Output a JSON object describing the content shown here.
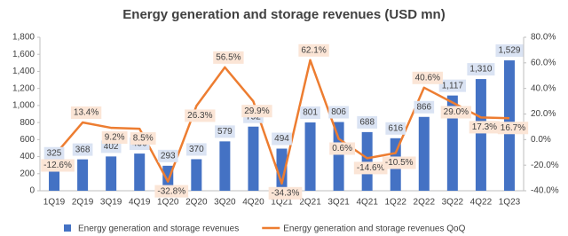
{
  "chart_data": {
    "type": "bar_line",
    "title": "Energy generation and storage revenues (USD mn)",
    "categories": [
      "1Q19",
      "2Q19",
      "3Q19",
      "4Q19",
      "1Q20",
      "2Q20",
      "3Q20",
      "4Q20",
      "1Q21",
      "2Q21",
      "3Q21",
      "4Q21",
      "1Q22",
      "2Q22",
      "3Q22",
      "4Q22",
      "1Q23"
    ],
    "series": [
      {
        "name": "Energy generation and storage revenues",
        "type": "bar",
        "color": "#4472c4",
        "values": [
          325,
          368,
          402,
          436,
          293,
          370,
          579,
          752,
          494,
          801,
          806,
          688,
          616,
          866,
          1117,
          1310,
          1529
        ],
        "value_labels": [
          "325",
          "368",
          "402",
          "436",
          "293",
          "370",
          "579",
          "752",
          "494",
          "801",
          "806",
          "688",
          "616",
          "866",
          "1,117",
          "1,310",
          "1,529"
        ]
      },
      {
        "name": "Energy generation and storage revenues QoQ",
        "type": "line",
        "axis": "y2",
        "color": "#ed7d31",
        "values": [
          -12.6,
          13.4,
          9.2,
          8.5,
          -32.8,
          26.3,
          56.5,
          29.9,
          -34.3,
          62.1,
          0.6,
          -14.6,
          -10.5,
          40.6,
          29.0,
          17.3,
          16.7
        ],
        "value_labels": [
          "-12.6%",
          "13.4%",
          "9.2%",
          "8.5%",
          "-32.8%",
          "26.3%",
          "56.5%",
          "29.9%",
          "-34.3%",
          "62.1%",
          "0.6%",
          "-14.6%",
          "-10.5%",
          "40.6%",
          "29.0%",
          "17.3%",
          "16.7%"
        ]
      }
    ],
    "ylim": [
      0,
      1800
    ],
    "yticks": [
      0,
      200,
      400,
      600,
      800,
      {
        "value": 1000,
        "label": "1,000"
      },
      {
        "value": 1200,
        "label": "1,200"
      },
      {
        "value": 1400,
        "label": "1,400"
      },
      {
        "value": 1600,
        "label": "1,600"
      },
      {
        "value": 1800,
        "label": "1,800"
      }
    ],
    "y2lim": [
      -40,
      80
    ],
    "y2ticks": [
      {
        "value": -40,
        "label": "-40.0%"
      },
      {
        "value": -20,
        "label": "-20.0%"
      },
      {
        "value": 0,
        "label": "0.0%"
      },
      {
        "value": 20,
        "label": "20.0%"
      },
      {
        "value": 40,
        "label": "40.0%"
      },
      {
        "value": 60,
        "label": "60.0%"
      },
      {
        "value": 80,
        "label": "80.0%"
      }
    ],
    "grid": false,
    "legend": "bottom"
  }
}
